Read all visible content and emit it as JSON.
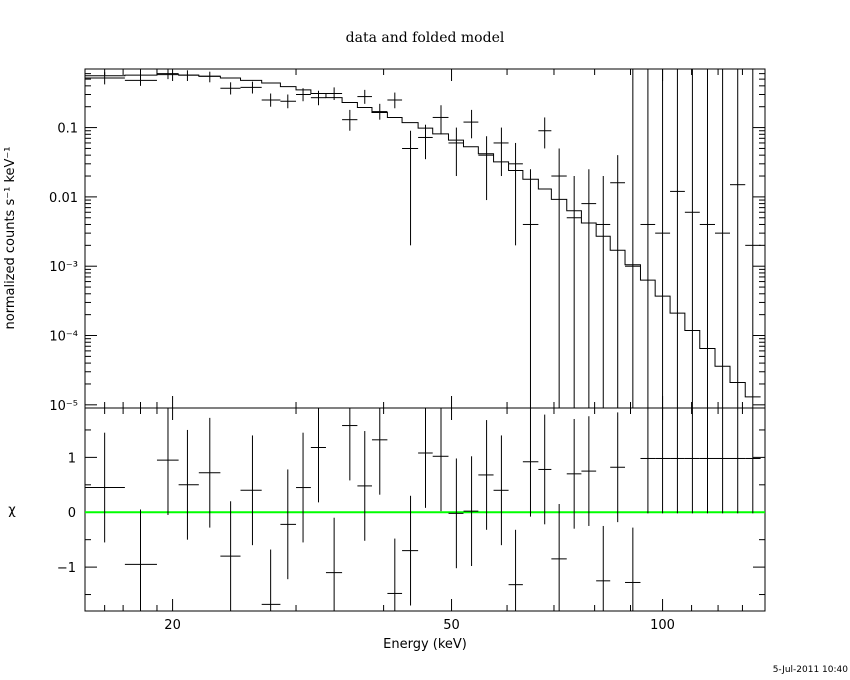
{
  "chart_data": {
    "type": "scatter",
    "title": "data and folded model",
    "xlabel": "Energy (keV)",
    "timestamp": "5-Jul-2011 10:40",
    "colors": {
      "axes": "#000000",
      "data": "#000000",
      "model": "#000000",
      "zero_line": "#00ff00"
    },
    "x_axis": {
      "scale": "log",
      "range": [
        15,
        140
      ],
      "tick_labels": [
        "20",
        "50",
        "100"
      ],
      "tick_values": [
        20,
        50,
        100
      ]
    },
    "top_panel": {
      "ylabel": "normalized counts s⁻¹ keV⁻¹",
      "yscale": "log",
      "ylim": [
        9e-06,
        0.7
      ],
      "tick_labels": [
        "0.1",
        "0.01",
        "10⁻³",
        "10⁻⁴",
        "10⁻⁵"
      ],
      "tick_values": [
        0.1,
        0.01,
        0.001,
        0.0001,
        1e-05
      ],
      "series": [
        {
          "role": "data",
          "points": [
            {
              "x": 16.0,
              "xlo": 15.0,
              "xhi": 17.1,
              "y": 0.52,
              "ylo": 0.42,
              "yhi": 0.63
            },
            {
              "x": 18.0,
              "xlo": 17.1,
              "xhi": 19.0,
              "y": 0.48,
              "ylo": 0.4,
              "yhi": 0.58
            },
            {
              "x": 19.7,
              "xlo": 19.0,
              "xhi": 20.4,
              "y": 0.6,
              "ylo": 0.5,
              "yhi": 0.7
            },
            {
              "x": 21.0,
              "xlo": 20.4,
              "xhi": 21.8,
              "y": 0.57,
              "ylo": 0.47,
              "yhi": 0.67
            },
            {
              "x": 22.6,
              "xlo": 21.8,
              "xhi": 23.4,
              "y": 0.55,
              "ylo": 0.45,
              "yhi": 0.64
            },
            {
              "x": 24.2,
              "xlo": 23.4,
              "xhi": 25.0,
              "y": 0.37,
              "ylo": 0.3,
              "yhi": 0.45
            },
            {
              "x": 26.0,
              "xlo": 25.0,
              "xhi": 26.8,
              "y": 0.38,
              "ylo": 0.31,
              "yhi": 0.46
            },
            {
              "x": 27.6,
              "xlo": 26.8,
              "xhi": 28.5,
              "y": 0.25,
              "ylo": 0.2,
              "yhi": 0.31
            },
            {
              "x": 29.2,
              "xlo": 28.5,
              "xhi": 30.0,
              "y": 0.24,
              "ylo": 0.19,
              "yhi": 0.3
            },
            {
              "x": 30.7,
              "xlo": 30.0,
              "xhi": 31.5,
              "y": 0.3,
              "ylo": 0.24,
              "yhi": 0.37
            },
            {
              "x": 32.3,
              "xlo": 31.5,
              "xhi": 33.1,
              "y": 0.27,
              "ylo": 0.21,
              "yhi": 0.34
            },
            {
              "x": 34.0,
              "xlo": 33.1,
              "xhi": 34.9,
              "y": 0.31,
              "ylo": 0.25,
              "yhi": 0.38
            },
            {
              "x": 35.8,
              "xlo": 34.9,
              "xhi": 36.7,
              "y": 0.13,
              "ylo": 0.09,
              "yhi": 0.18
            },
            {
              "x": 37.6,
              "xlo": 36.7,
              "xhi": 38.5,
              "y": 0.28,
              "ylo": 0.22,
              "yhi": 0.35
            },
            {
              "x": 39.5,
              "xlo": 38.5,
              "xhi": 40.5,
              "y": 0.17,
              "ylo": 0.13,
              "yhi": 0.22
            },
            {
              "x": 41.5,
              "xlo": 40.5,
              "xhi": 42.5,
              "y": 0.25,
              "ylo": 0.19,
              "yhi": 0.32
            },
            {
              "x": 43.7,
              "xlo": 42.5,
              "xhi": 44.8,
              "y": 0.05,
              "ylo": 0.002,
              "yhi": 0.09
            },
            {
              "x": 45.9,
              "xlo": 44.8,
              "xhi": 47.0,
              "y": 0.072,
              "ylo": 0.035,
              "yhi": 0.11
            },
            {
              "x": 48.3,
              "xlo": 47.0,
              "xhi": 49.5,
              "y": 0.14,
              "ylo": 0.08,
              "yhi": 0.21
            },
            {
              "x": 50.8,
              "xlo": 49.5,
              "xhi": 52.0,
              "y": 0.06,
              "ylo": 0.02,
              "yhi": 0.1
            },
            {
              "x": 53.4,
              "xlo": 52.0,
              "xhi": 54.6,
              "y": 0.12,
              "ylo": 0.07,
              "yhi": 0.18
            },
            {
              "x": 56.1,
              "xlo": 54.6,
              "xhi": 57.4,
              "y": 0.04,
              "ylo": 0.009,
              "yhi": 0.075
            },
            {
              "x": 58.9,
              "xlo": 57.4,
              "xhi": 60.3,
              "y": 0.06,
              "ylo": 0.02,
              "yhi": 0.1
            },
            {
              "x": 61.7,
              "xlo": 60.3,
              "xhi": 63.2,
              "y": 0.03,
              "ylo": 0.002,
              "yhi": 0.06
            },
            {
              "x": 64.8,
              "xlo": 63.2,
              "xhi": 66.5,
              "y": 0.004,
              "ylo": 9e-06,
              "yhi": 0.025
            },
            {
              "x": 67.9,
              "xlo": 66.5,
              "xhi": 69.4,
              "y": 0.09,
              "ylo": 0.05,
              "yhi": 0.14
            },
            {
              "x": 71.2,
              "xlo": 69.4,
              "xhi": 73.0,
              "y": 0.02,
              "ylo": 9e-06,
              "yhi": 0.05
            },
            {
              "x": 74.8,
              "xlo": 73.0,
              "xhi": 76.6,
              "y": 0.005,
              "ylo": 9e-06,
              "yhi": 0.02
            },
            {
              "x": 78.5,
              "xlo": 76.6,
              "xhi": 80.4,
              "y": 0.008,
              "ylo": 9e-06,
              "yhi": 0.025
            },
            {
              "x": 82.3,
              "xlo": 80.4,
              "xhi": 84.2,
              "y": 0.004,
              "ylo": 9e-06,
              "yhi": 0.02
            },
            {
              "x": 86.3,
              "xlo": 84.2,
              "xhi": 88.4,
              "y": 0.016,
              "ylo": 9e-06,
              "yhi": 0.04
            },
            {
              "x": 90.7,
              "xlo": 88.4,
              "xhi": 93.0,
              "y": 0.001,
              "ylo": 9e-06,
              "yhi": 0.7
            },
            {
              "x": 95.3,
              "xlo": 93.0,
              "xhi": 97.6,
              "y": 0.004,
              "ylo": 9e-06,
              "yhi": 0.7
            },
            {
              "x": 100.0,
              "xlo": 97.6,
              "xhi": 102.5,
              "y": 0.003,
              "ylo": 9e-06,
              "yhi": 0.7
            },
            {
              "x": 105.0,
              "xlo": 102.5,
              "xhi": 107.6,
              "y": 0.012,
              "ylo": 9e-06,
              "yhi": 0.7
            },
            {
              "x": 110.3,
              "xlo": 107.6,
              "xhi": 113.0,
              "y": 0.006,
              "ylo": 9e-06,
              "yhi": 0.7
            },
            {
              "x": 115.9,
              "xlo": 113.0,
              "xhi": 118.8,
              "y": 0.004,
              "ylo": 9e-06,
              "yhi": 0.7
            },
            {
              "x": 121.8,
              "xlo": 118.8,
              "xhi": 124.8,
              "y": 0.003,
              "ylo": 9e-06,
              "yhi": 0.7
            },
            {
              "x": 128.0,
              "xlo": 124.8,
              "xhi": 131.2,
              "y": 0.015,
              "ylo": 9e-06,
              "yhi": 0.7
            },
            {
              "x": 134.5,
              "xlo": 131.2,
              "xhi": 138.0,
              "y": 0.002,
              "ylo": 9e-06,
              "yhi": 0.7
            }
          ]
        },
        {
          "role": "model",
          "steps": [
            [
              15.0,
              0.56
            ],
            [
              17.1,
              0.57
            ],
            [
              19.0,
              0.58
            ],
            [
              20.4,
              0.57
            ],
            [
              21.8,
              0.55
            ],
            [
              23.4,
              0.52
            ],
            [
              25.0,
              0.48
            ],
            [
              26.8,
              0.44
            ],
            [
              28.5,
              0.39
            ],
            [
              30.0,
              0.35
            ],
            [
              31.5,
              0.31
            ],
            [
              33.1,
              0.27
            ],
            [
              34.9,
              0.23
            ],
            [
              36.7,
              0.195
            ],
            [
              38.5,
              0.165
            ],
            [
              40.5,
              0.14
            ],
            [
              42.5,
              0.118
            ],
            [
              44.8,
              0.098
            ],
            [
              47.0,
              0.081
            ],
            [
              49.5,
              0.066
            ],
            [
              52.0,
              0.053
            ],
            [
              54.6,
              0.042
            ],
            [
              57.4,
              0.032
            ],
            [
              60.3,
              0.024
            ],
            [
              63.2,
              0.018
            ],
            [
              66.5,
              0.013
            ],
            [
              69.4,
              0.0092
            ],
            [
              73.0,
              0.0063
            ],
            [
              76.6,
              0.0042
            ],
            [
              80.4,
              0.0027
            ],
            [
              84.2,
              0.0017
            ],
            [
              88.4,
              0.00105
            ],
            [
              93.0,
              0.00063
            ],
            [
              97.6,
              0.00037
            ],
            [
              102.5,
              0.00021
            ],
            [
              107.6,
              0.000118
            ],
            [
              113.0,
              6.5e-05
            ],
            [
              118.8,
              3.6e-05
            ],
            [
              124.8,
              2.1e-05
            ],
            [
              131.2,
              1.3e-05
            ],
            [
              138.0,
              1.3e-05
            ]
          ]
        }
      ]
    },
    "bottom_panel": {
      "ylabel": "χ",
      "ylim": [
        -1.8,
        1.9
      ],
      "tick_labels": [
        "1",
        "0",
        "−1"
      ],
      "tick_values": [
        1,
        0,
        -1
      ],
      "zero_line": 0,
      "residuals": [
        0.45,
        -0.95,
        0.95,
        0.5,
        0.72,
        -0.8,
        0.4,
        -1.68,
        -0.22,
        0.45,
        1.18,
        -1.1,
        1.58,
        0.48,
        1.32,
        -1.48,
        -0.7,
        1.08,
        1.02,
        -0.02,
        0.02,
        0.68,
        0.4,
        -1.32,
        0.92,
        0.78,
        -0.85,
        0.7,
        0.75,
        -1.25,
        0.82,
        -1.28,
        0.98,
        0.98,
        0.98,
        0.98,
        0.98,
        0.98,
        0.98,
        0.98
      ],
      "residual_err": [
        1.0,
        1.0,
        1.0,
        1.0,
        1.0,
        1.0,
        1.0,
        1.0,
        1.0,
        1.0,
        1.0,
        1.0,
        1.0,
        1.0,
        1.0,
        1.0,
        1.0,
        1.0,
        1.0,
        1.0,
        1.0,
        1.0,
        1.0,
        1.0,
        1.0,
        1.0,
        1.0,
        1.0,
        1.0,
        1.0,
        1.0,
        1.0,
        1.0,
        1.0,
        1.0,
        1.0,
        1.0,
        1.0,
        1.0,
        1.0
      ]
    }
  }
}
